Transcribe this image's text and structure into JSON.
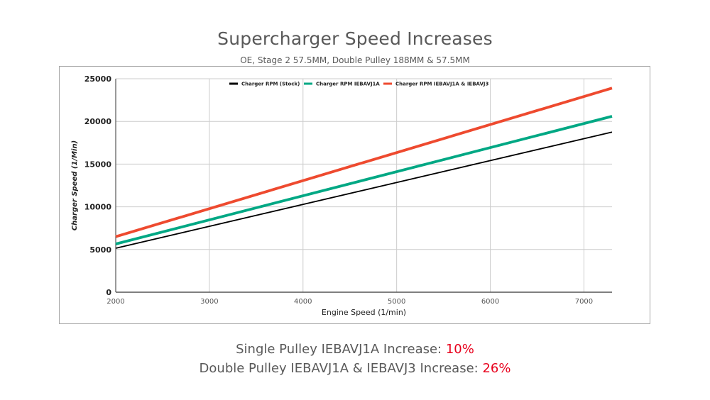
{
  "header": {
    "title": "Supercharger Speed Increases",
    "subtitle": "OE, Stage 2 57.5MM, Double Pulley 188MM & 57.5MM"
  },
  "notes": [
    {
      "label": "Single Pulley IEBAVJ1A Increase: ",
      "value": "10%"
    },
    {
      "label": "Double Pulley IEBAVJ1A & IEBAVJ3 Increase: ",
      "value": "26%"
    }
  ],
  "accent_color": "#e8001c",
  "chart_data": {
    "type": "line",
    "title": "",
    "xlabel": "Engine Speed (1/min)",
    "ylabel": "Charger Speed (1/Min)",
    "xlim": [
      2000,
      7300
    ],
    "ylim": [
      0,
      25000
    ],
    "x_ticks": [
      2000,
      3000,
      4000,
      5000,
      6000,
      7000
    ],
    "y_ticks": [
      0,
      5000,
      10000,
      15000,
      20000,
      25000
    ],
    "grid": true,
    "legend_position": "top",
    "series": [
      {
        "name": "Charger RPM (Stock)",
        "color": "#000000",
        "x": [
          2000,
          7300
        ],
        "y": [
          5150,
          18750
        ]
      },
      {
        "name": "Charger RPM IEBAVJ1A",
        "color": "#00a884",
        "x": [
          2000,
          7300
        ],
        "y": [
          5650,
          20600
        ]
      },
      {
        "name": "Charger RPM IEBAVJ1A & IEBAVJ3",
        "color": "#ee4a2f",
        "x": [
          2000,
          7300
        ],
        "y": [
          6500,
          23900
        ]
      }
    ]
  }
}
